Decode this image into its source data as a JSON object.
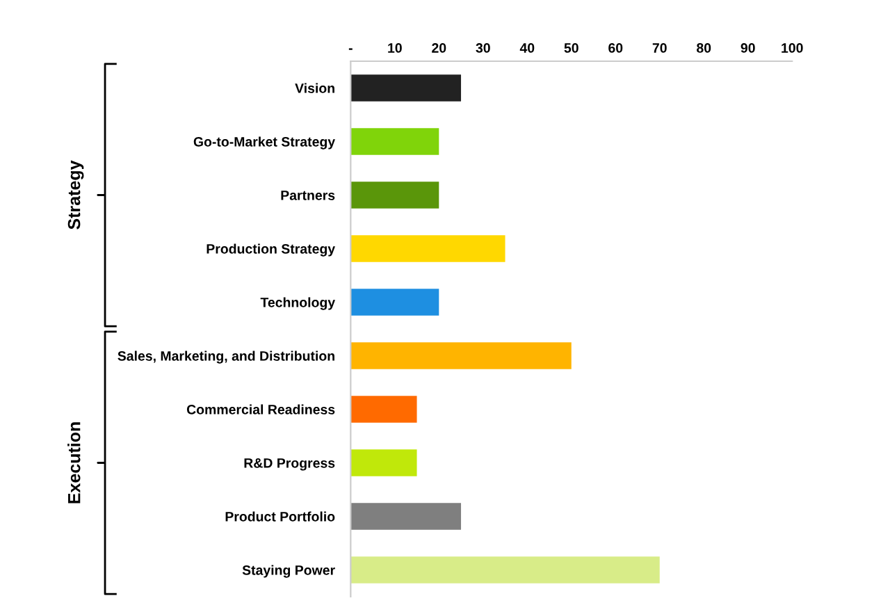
{
  "chart_data": {
    "type": "bar",
    "orientation": "horizontal",
    "categories": [
      "Vision",
      "Go-to-Market Strategy",
      "Partners",
      "Production Strategy",
      "Technology",
      "Sales, Marketing, and Distribution",
      "Commercial Readiness",
      "R&D Progress",
      "Product Portfolio",
      "Staying Power"
    ],
    "values": [
      25,
      20,
      20,
      35,
      20,
      50,
      15,
      15,
      25,
      70
    ],
    "colors": [
      "#222222",
      "#80d40a",
      "#5a960a",
      "#ffd800",
      "#1e8fe1",
      "#ffb400",
      "#ff6a00",
      "#c0e80a",
      "#7f7f7f",
      "#d8ec88"
    ],
    "xlim": [
      0,
      100
    ],
    "xticks": [
      {
        "value": 0,
        "label": "-"
      },
      10,
      20,
      30,
      40,
      50,
      60,
      70,
      80,
      90,
      100
    ],
    "annotations": [
      "Strategy",
      "Execution"
    ],
    "grid": false
  }
}
